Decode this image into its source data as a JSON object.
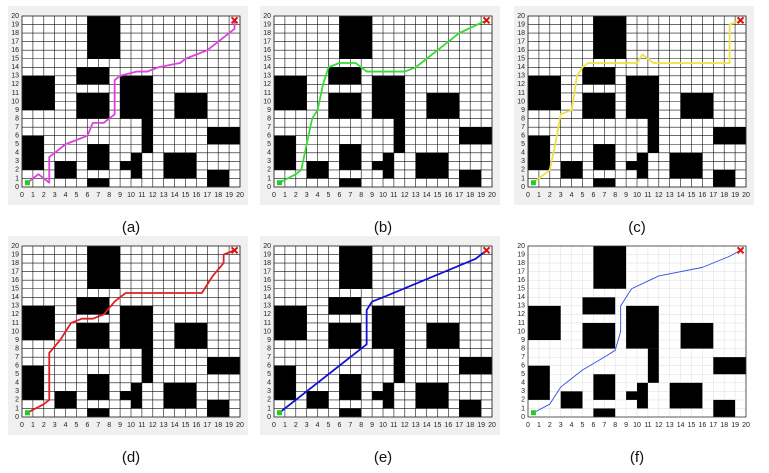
{
  "map": {
    "obstacles": [
      [
        6,
        15,
        9,
        20
      ],
      [
        0,
        9,
        3,
        13
      ],
      [
        5,
        12,
        8,
        14
      ],
      [
        5,
        8,
        8,
        11
      ],
      [
        9,
        8,
        12,
        13
      ],
      [
        11,
        4,
        12,
        8
      ],
      [
        14,
        8,
        17,
        11
      ],
      [
        17,
        5,
        20,
        7
      ],
      [
        0,
        2,
        2,
        6
      ],
      [
        3,
        1,
        5,
        3
      ],
      [
        6,
        2,
        8,
        5
      ],
      [
        6,
        0,
        8,
        1
      ],
      [
        9,
        2,
        10,
        3
      ],
      [
        10,
        1,
        11,
        4
      ],
      [
        13,
        1,
        16,
        4
      ],
      [
        17,
        0,
        19,
        2
      ]
    ],
    "start": [
      0.5,
      0.5
    ],
    "goal": [
      19.5,
      19.5
    ]
  },
  "chart_data": [
    {
      "type": "line",
      "label": "(a)",
      "color": "#e040e0",
      "grid": true,
      "x": [
        0.5,
        1.5,
        2,
        2.5,
        2.5,
        3,
        4,
        5,
        6,
        6.5,
        7.5,
        8,
        8.5,
        8.5,
        9,
        10.5,
        11.5,
        12.5,
        14.5,
        15,
        16,
        17,
        18,
        19.5,
        19.5
      ],
      "y": [
        0.5,
        1.5,
        1,
        0.5,
        3.5,
        4,
        5,
        5.5,
        6,
        7.5,
        7.5,
        8,
        8.5,
        12.5,
        13,
        13.5,
        13.5,
        14,
        14.5,
        15,
        15.5,
        16,
        17,
        18.5,
        19.5
      ],
      "xlim": [
        0,
        20
      ],
      "ylim": [
        0,
        20
      ],
      "xticks": [
        0,
        1,
        2,
        3,
        4,
        5,
        6,
        7,
        8,
        9,
        10,
        11,
        12,
        13,
        14,
        15,
        16,
        17,
        18,
        19,
        20
      ],
      "yticks": [
        0,
        1,
        2,
        3,
        4,
        5,
        6,
        7,
        8,
        9,
        10,
        11,
        12,
        13,
        14,
        15,
        16,
        17,
        18,
        19,
        20
      ]
    },
    {
      "type": "line",
      "label": "(b)",
      "color": "#33dd33",
      "grid": true,
      "x": [
        0.5,
        2,
        2.5,
        3,
        3.5,
        4,
        4.5,
        5,
        6,
        7.5,
        8.5,
        12,
        13,
        14,
        15,
        16,
        17,
        19.5
      ],
      "y": [
        0.5,
        1.5,
        2,
        5,
        8,
        9,
        12,
        14,
        14.5,
        14.5,
        13.5,
        13.5,
        14,
        15,
        16,
        17,
        18,
        19.5
      ],
      "xlim": [
        0,
        20
      ],
      "ylim": [
        0,
        20
      ],
      "xticks": [
        0,
        1,
        2,
        3,
        4,
        5,
        6,
        7,
        8,
        9,
        10,
        11,
        12,
        13,
        14,
        15,
        16,
        17,
        18,
        19,
        20
      ],
      "yticks": [
        0,
        1,
        2,
        3,
        4,
        5,
        6,
        7,
        8,
        9,
        10,
        11,
        12,
        13,
        14,
        15,
        16,
        17,
        18,
        19,
        20
      ]
    },
    {
      "type": "line",
      "label": "(c)",
      "color": "#f0e040",
      "grid": true,
      "x": [
        0.5,
        1,
        2,
        2.5,
        3,
        4,
        4.5,
        5,
        5.5,
        10,
        10.5,
        11.5,
        18.5,
        18.5,
        19.5
      ],
      "y": [
        0.5,
        1,
        2,
        5,
        8.5,
        9,
        13,
        14,
        14.5,
        14.5,
        15.5,
        14.5,
        14.5,
        19,
        19.5
      ],
      "xlim": [
        0,
        20
      ],
      "ylim": [
        0,
        20
      ],
      "xticks": [
        0,
        1,
        2,
        3,
        4,
        5,
        6,
        7,
        8,
        9,
        10,
        11,
        12,
        13,
        14,
        15,
        16,
        17,
        18,
        19,
        20
      ],
      "yticks": [
        0,
        1,
        2,
        3,
        4,
        5,
        6,
        7,
        8,
        9,
        10,
        11,
        12,
        13,
        14,
        15,
        16,
        17,
        18,
        19,
        20
      ]
    },
    {
      "type": "line",
      "label": "(d)",
      "color": "#e02020",
      "grid": true,
      "x": [
        0.5,
        2,
        2.5,
        2.5,
        3.5,
        4,
        4.5,
        5.5,
        6.5,
        7.5,
        8.5,
        9.5,
        16.5,
        17,
        17.5,
        18.5,
        18.5,
        19.5
      ],
      "y": [
        0.5,
        1.5,
        2,
        7.5,
        9,
        10,
        11,
        11.5,
        11.5,
        12,
        13.5,
        14.5,
        14.5,
        15.5,
        16.5,
        18,
        19,
        19.5
      ],
      "xlim": [
        0,
        20
      ],
      "ylim": [
        0,
        20
      ],
      "xticks": [
        0,
        1,
        2,
        3,
        4,
        5,
        6,
        7,
        8,
        9,
        10,
        11,
        12,
        13,
        14,
        15,
        16,
        17,
        18,
        19,
        20
      ],
      "yticks": [
        0,
        1,
        2,
        3,
        4,
        5,
        6,
        7,
        8,
        9,
        10,
        11,
        12,
        13,
        14,
        15,
        16,
        17,
        18,
        19,
        20
      ]
    },
    {
      "type": "line",
      "label": "(e)",
      "color": "#1010d0",
      "grid": true,
      "x": [
        0.5,
        8.5,
        8.5,
        9,
        10,
        18.5,
        19.5
      ],
      "y": [
        0.5,
        8.5,
        12.5,
        13.5,
        14,
        18.5,
        19.5
      ],
      "xlim": [
        0,
        20
      ],
      "ylim": [
        0,
        20
      ],
      "xticks": [
        0,
        1,
        2,
        3,
        4,
        5,
        6,
        7,
        8,
        9,
        10,
        11,
        12,
        13,
        14,
        15,
        16,
        17,
        18,
        19,
        20
      ],
      "yticks": [
        0,
        1,
        2,
        3,
        4,
        5,
        6,
        7,
        8,
        9,
        10,
        11,
        12,
        13,
        14,
        15,
        16,
        17,
        18,
        19,
        20
      ]
    },
    {
      "type": "line",
      "label": "(f)",
      "color": "#3050e0",
      "grid": false,
      "x": [
        0.5,
        2,
        3,
        5,
        7,
        8,
        8.5,
        8.5,
        9.5,
        12,
        16,
        18.5,
        19.5
      ],
      "y": [
        0.5,
        1.5,
        3.5,
        5.5,
        7,
        7.8,
        10,
        13,
        15,
        16.5,
        17.5,
        18.8,
        19.5
      ],
      "xlim": [
        0,
        20
      ],
      "ylim": [
        0,
        20
      ],
      "xticks": [
        0,
        1,
        2,
        3,
        4,
        5,
        6,
        7,
        8,
        9,
        10,
        11,
        12,
        13,
        14,
        15,
        16,
        17,
        18,
        19,
        20
      ],
      "yticks": [
        0,
        1,
        2,
        3,
        4,
        5,
        6,
        7,
        8,
        9,
        10,
        11,
        12,
        13,
        14,
        15,
        16,
        17,
        18,
        19,
        20
      ]
    }
  ]
}
